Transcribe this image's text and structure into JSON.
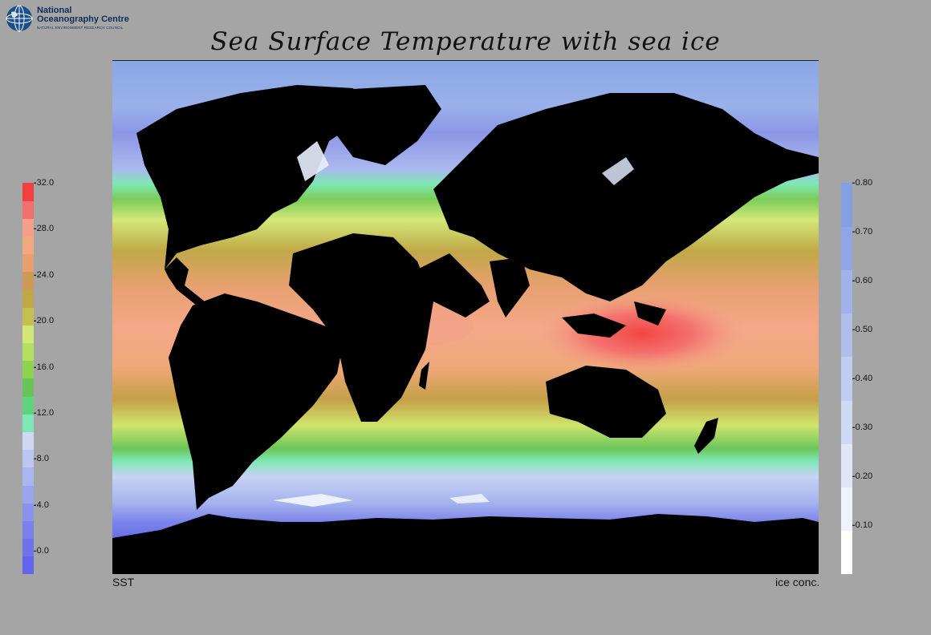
{
  "logo": {
    "line1": "National",
    "line2": "Oceanography Centre",
    "sub": "NATURAL ENVIRONMENT RESEARCH COUNCIL"
  },
  "title": "Sea Surface Temperature with sea ice",
  "footer": {
    "left": "SST",
    "right": "ice conc."
  },
  "sst_colorbar": {
    "min": -2.0,
    "max": 32.0,
    "labels": [
      "32.0",
      "28.0",
      "24.0",
      "20.0",
      "16.0",
      "12.0",
      "8.0",
      "4.0",
      "0.0"
    ],
    "label_values": [
      32,
      28,
      24,
      20,
      16,
      12,
      8,
      4,
      0
    ],
    "colors": [
      "#6464e8",
      "#6e73e8",
      "#7a82ea",
      "#8a93ea",
      "#9aa5ee",
      "#aab6f0",
      "#bcc6f2",
      "#cfd7f4",
      "#7ee8b4",
      "#5ed37a",
      "#6ac25a",
      "#8fd24e",
      "#b3e060",
      "#d0e875",
      "#c4c050",
      "#c0a848",
      "#cf9a58",
      "#e8a070",
      "#f0a880",
      "#f4a088",
      "#f07070",
      "#f04040"
    ]
  },
  "ice_colorbar": {
    "min": 0.0,
    "max": 0.8,
    "labels": [
      "0.80",
      "0.70",
      "0.60",
      "0.50",
      "0.40",
      "0.30",
      "0.20",
      "0.10"
    ],
    "label_values": [
      0.8,
      0.7,
      0.6,
      0.5,
      0.4,
      0.3,
      0.2,
      0.1
    ],
    "colors": [
      "#ffffff",
      "#f0f3fc",
      "#e0e6f8",
      "#d0d9f4",
      "#c0ccf0",
      "#b0beec",
      "#a0b2e8",
      "#90a5e4",
      "#85a0e0"
    ]
  },
  "colors": {
    "background": "#a5a5a5",
    "land": "#000000",
    "polar_ocean": "#85a5e0"
  }
}
